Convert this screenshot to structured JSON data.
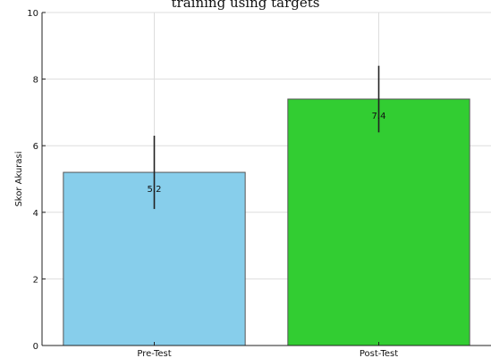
{
  "chart_data": {
    "type": "bar",
    "title": "training using targets",
    "categories": [
      "Pre-Test",
      "Post-Test"
    ],
    "values": [
      5.2,
      7.4
    ],
    "data_labels": [
      "5.2",
      "7.4"
    ],
    "error_bars": [
      {
        "low": 4.1,
        "high": 6.3
      },
      {
        "low": 6.4,
        "high": 8.4
      }
    ],
    "xlabel": "",
    "ylabel": "Skor Akurasi",
    "ylim": [
      0,
      10
    ],
    "yticks": [
      0,
      2,
      4,
      6,
      8,
      10
    ],
    "grid": true,
    "colors": [
      "#87CEEB",
      "#32CD32"
    ],
    "error_bar_color": "#222222",
    "bar_edge_color": "#555555"
  }
}
